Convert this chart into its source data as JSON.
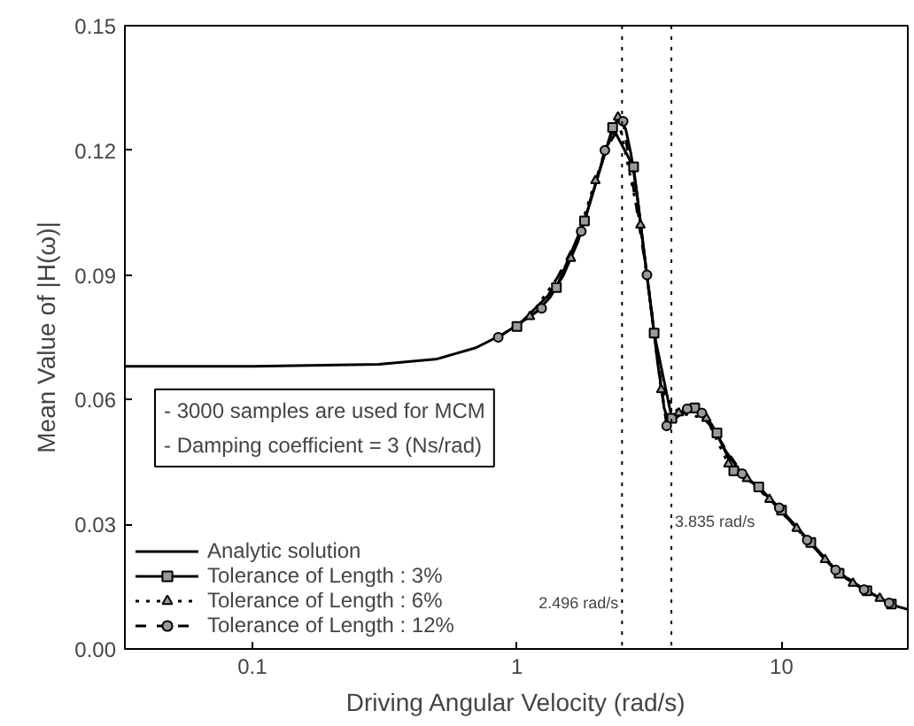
{
  "chart_data": {
    "type": "line",
    "xlabel": "Driving Angular Velocity (rad/s)",
    "ylabel": "Mean Value of |H(ω)|",
    "log": "x",
    "xlim": [
      0.033,
      30
    ],
    "xticks": [
      0.1,
      1,
      10
    ],
    "ylim": [
      0,
      0.15
    ],
    "yticks": [
      {
        "value": 0,
        "label": "0.00"
      },
      0.03,
      0.06,
      0.09,
      0.12,
      0.15
    ],
    "legend": "bottom left",
    "grid": false,
    "annotations": [
      "- 3000 samples are used for MCM",
      "- Damping coefficient = 3 (Ns/rad)"
    ],
    "ref_lines": [
      {
        "axis": "x",
        "value": 2.496,
        "label": "2.496 rad/s",
        "line_style": "dotted",
        "color": "#000000"
      },
      {
        "axis": "x",
        "value": 3.835,
        "label": "3.835 rad/s",
        "line_style": "dotted",
        "color": "#000000"
      }
    ],
    "series": [
      {
        "name": "Analytic solution",
        "color": "#000000",
        "marker": "none",
        "line_style": "solid",
        "x": [
          0.033,
          0.1,
          0.3,
          0.5,
          0.7,
          0.9,
          1.06,
          1.18,
          1.33,
          1.5,
          1.7,
          1.9,
          2.07,
          2.22,
          2.35,
          2.45,
          2.58,
          2.7,
          2.85,
          3.0,
          3.2,
          3.4,
          3.6,
          3.75,
          3.95,
          4.25,
          4.55,
          4.95,
          5.45,
          6.1,
          7.0,
          7.8,
          8.6,
          9.5,
          10.7,
          12.1,
          13.7,
          15.5,
          17.5,
          19.8,
          22.2,
          24.8,
          27.5,
          30
        ],
        "values": [
          0.068,
          0.068,
          0.0685,
          0.0698,
          0.0725,
          0.076,
          0.079,
          0.081,
          0.0845,
          0.09,
          0.098,
          0.108,
          0.116,
          0.122,
          0.1265,
          0.128,
          0.125,
          0.119,
          0.109,
          0.097,
          0.083,
          0.069,
          0.058,
          0.0545,
          0.056,
          0.0573,
          0.058,
          0.057,
          0.054,
          0.048,
          0.0425,
          0.04,
          0.0375,
          0.0345,
          0.031,
          0.0275,
          0.0235,
          0.0198,
          0.017,
          0.0148,
          0.0131,
          0.0115,
          0.0102,
          0.0095
        ]
      },
      {
        "name": "Tolerance of Length : 3%",
        "color": "#000000",
        "marker": "square",
        "line_style": "solid",
        "x": [
          1.0,
          1.41,
          1.8,
          2.3,
          2.76,
          3.3,
          3.85,
          4.7,
          5.7,
          6.6,
          8.2,
          10,
          12.9,
          16.5,
          21,
          26
        ],
        "values": [
          0.0776,
          0.087,
          0.103,
          0.1255,
          0.116,
          0.076,
          0.0555,
          0.058,
          0.052,
          0.0429,
          0.039,
          0.0334,
          0.0256,
          0.0182,
          0.014,
          0.0108
        ]
      },
      {
        "name": "Tolerance of Length : 6%",
        "color": "#000000",
        "marker": "triangle",
        "line_style": "dotted",
        "x": [
          1.12,
          1.6,
          1.98,
          2.41,
          2.93,
          3.51,
          4.09,
          5.2,
          6.3,
          7.4,
          9.0,
          11.4,
          14.6,
          18.6,
          23.5
        ],
        "values": [
          0.08,
          0.094,
          0.1127,
          0.128,
          0.102,
          0.0624,
          0.0568,
          0.0555,
          0.0445,
          0.041,
          0.036,
          0.029,
          0.0215,
          0.0158,
          0.0122
        ]
      },
      {
        "name": "Tolerance of Length : 12%",
        "color": "#000000",
        "marker": "circle",
        "line_style": "dashed",
        "x": [
          0.85,
          1.24,
          1.75,
          2.15,
          2.52,
          3.1,
          3.68,
          4.4,
          5.0,
          7.1,
          9.8,
          12.5,
          16,
          20.5,
          25.5
        ],
        "values": [
          0.075,
          0.082,
          0.1005,
          0.12,
          0.127,
          0.09,
          0.0537,
          0.0578,
          0.0568,
          0.0422,
          0.034,
          0.0262,
          0.019,
          0.0143,
          0.0111
        ]
      }
    ]
  }
}
